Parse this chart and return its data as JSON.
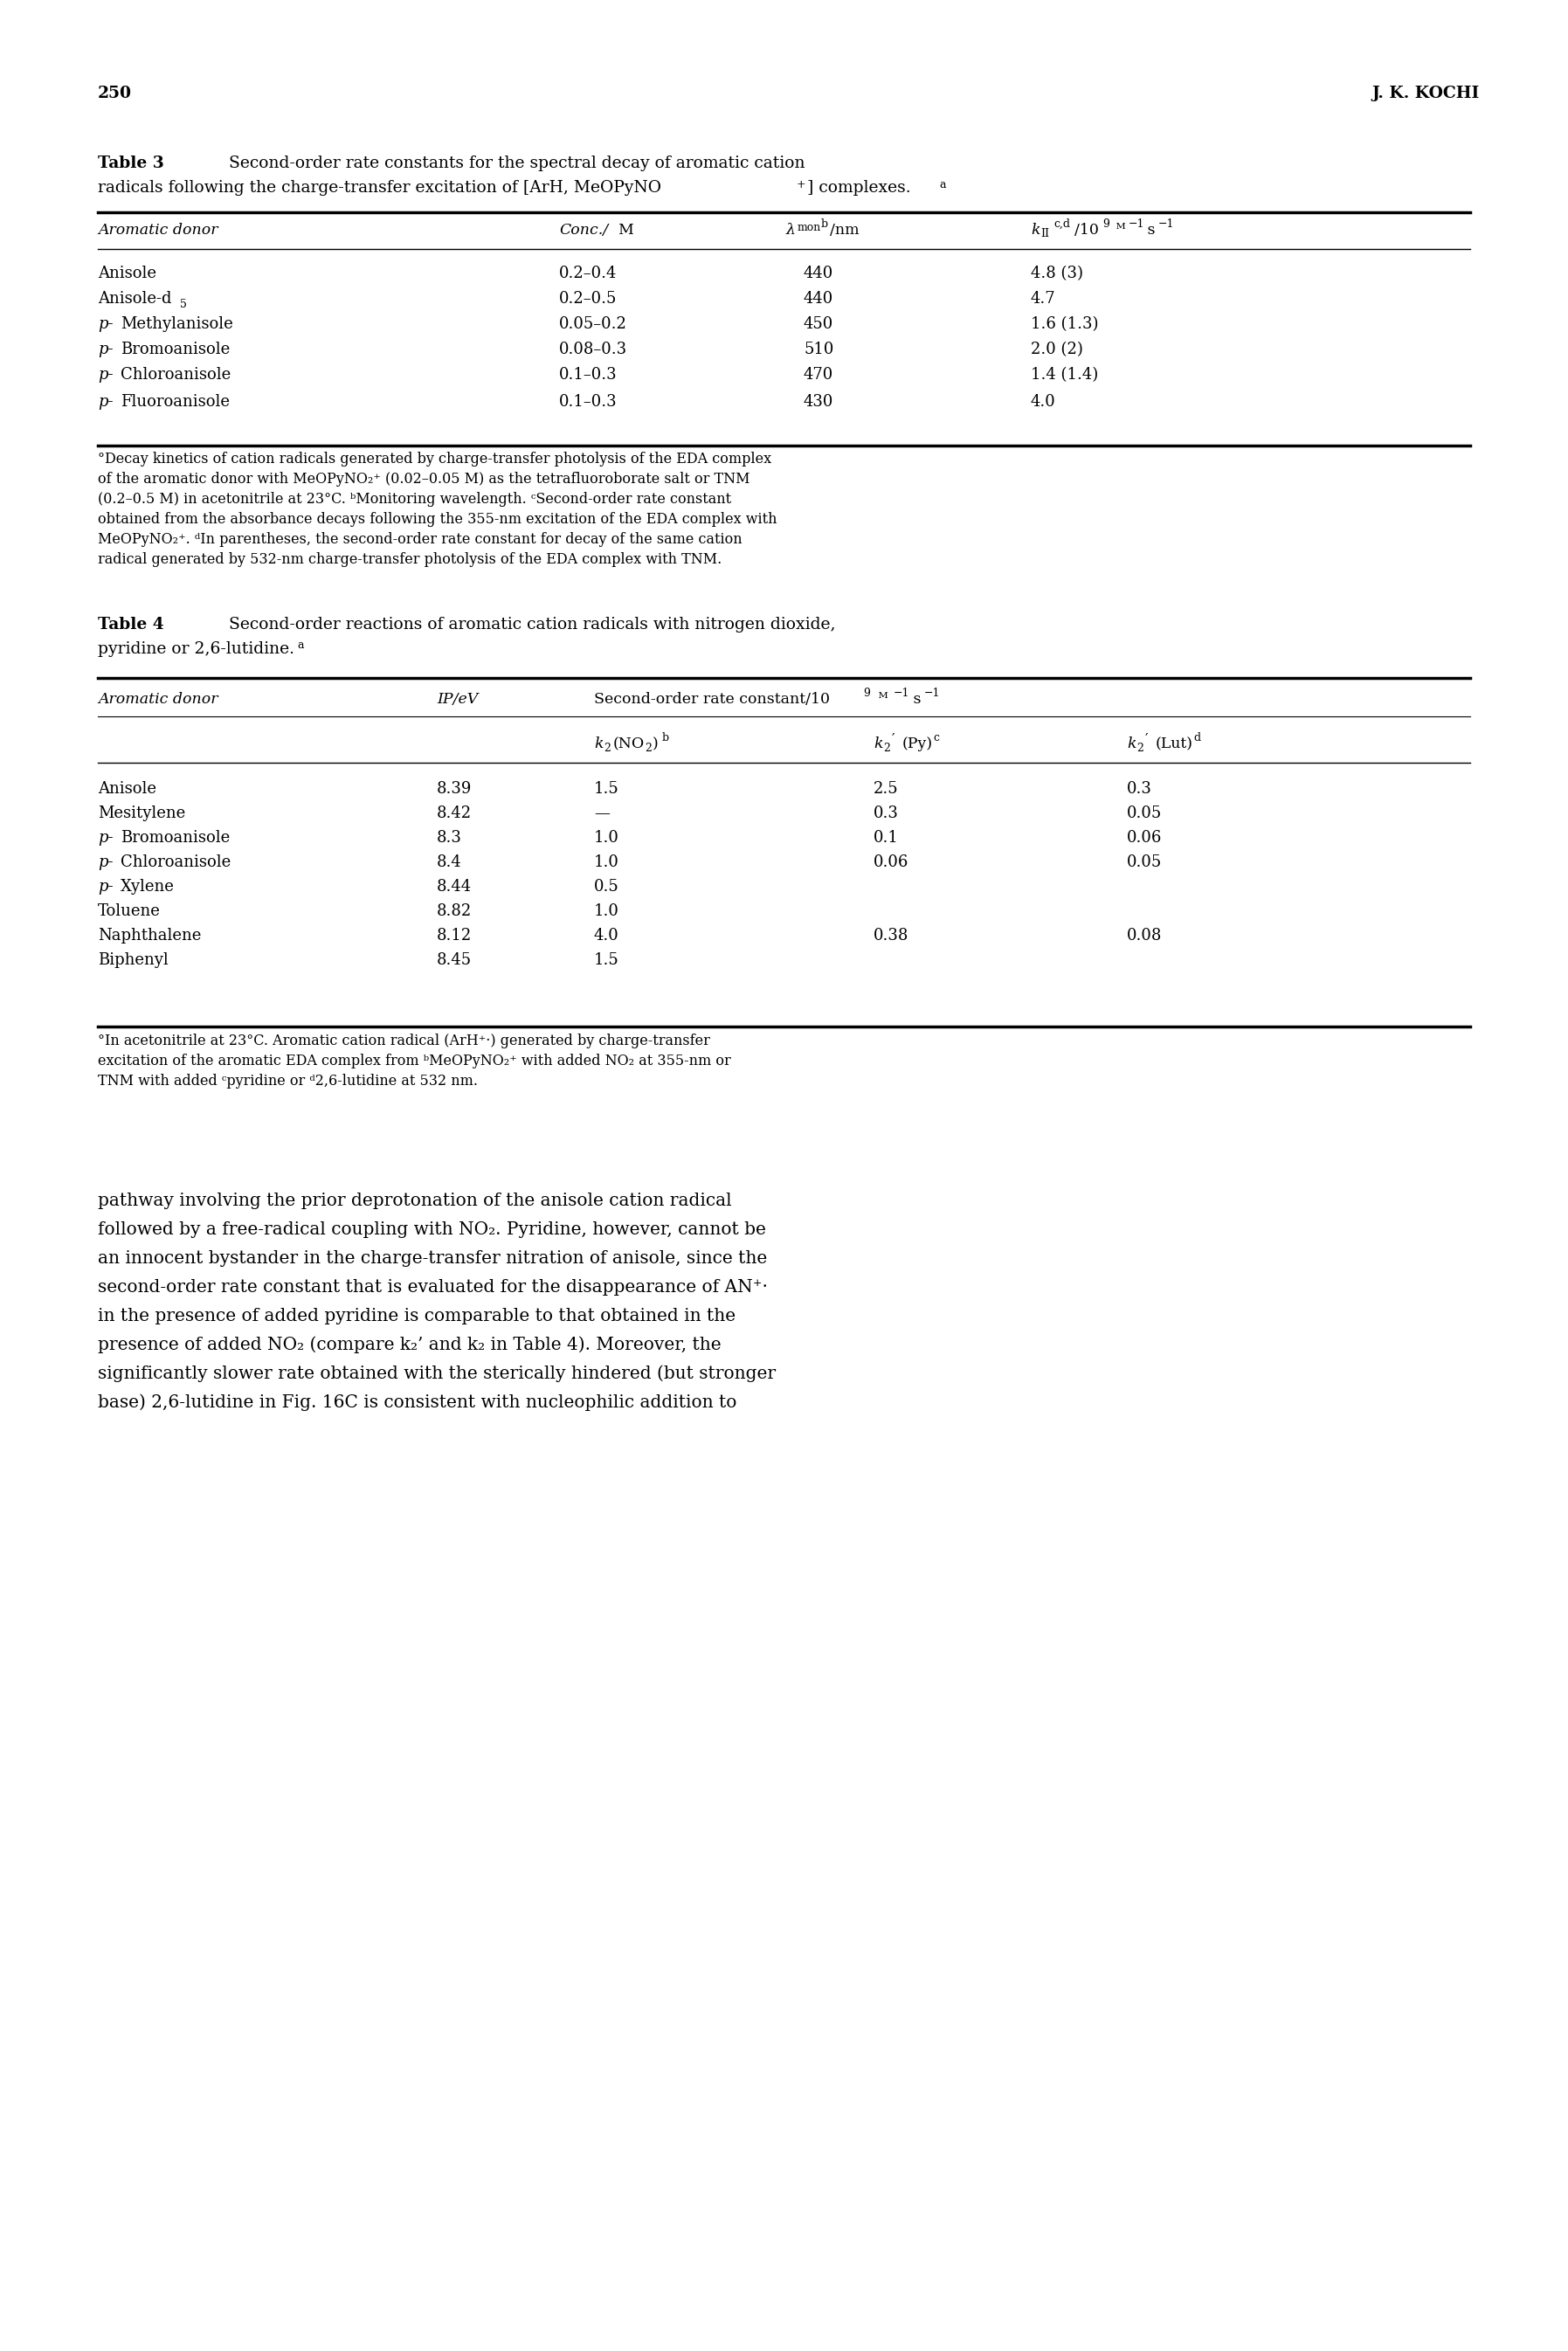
{
  "page_number": "250",
  "page_author": "J. K. KOCHI",
  "table3_rows": [
    [
      "Anisole",
      "0.2–0.4",
      "440",
      "4.8 (3)"
    ],
    [
      "Anisole-d5",
      "0.2–0.5",
      "440",
      "4.7"
    ],
    [
      "p-Methylanisole",
      "0.05–0.2",
      "450",
      "1.6 (1.3)"
    ],
    [
      "p-Bromoanisole",
      "0.08–0.3",
      "510",
      "2.0 (2)"
    ],
    [
      "p-Chloroanisole",
      "0.1–0.3",
      "470",
      "1.4 (1.4)"
    ],
    [
      "p-Fluoroanisole",
      "0.1–0.3",
      "430",
      "4.0"
    ]
  ],
  "table4_rows": [
    [
      "Anisole",
      "8.39",
      "1.5",
      "2.5",
      "0.3"
    ],
    [
      "Mesitylene",
      "8.42",
      "—",
      "0.3",
      "0.05"
    ],
    [
      "p-Bromoanisole",
      "8.3",
      "1.0",
      "0.1",
      "0.06"
    ],
    [
      "p-Chloroanisole",
      "8.4",
      "1.0",
      "0.06",
      "0.05"
    ],
    [
      "p-Xylene",
      "8.44",
      "0.5",
      "",
      ""
    ],
    [
      "Toluene",
      "8.82",
      "1.0",
      "",
      ""
    ],
    [
      "Naphthalene",
      "8.12",
      "4.0",
      "0.38",
      "0.08"
    ],
    [
      "Biphenyl",
      "8.45",
      "1.5",
      "",
      ""
    ]
  ],
  "fn3_lines": [
    "°Decay kinetics of cation radicals generated by charge-transfer photolysis of the EDA complex",
    "of the aromatic donor with MeOPyNO₂⁺ (0.02–0.05 M) as the tetrafluoroborate salt or TNM",
    "(0.2–0.5 M) in acetonitrile at 23°C. ᵇMonitoring wavelength. ᶜSecond-order rate constant",
    "obtained from the absorbance decays following the 355-nm excitation of the EDA complex with",
    "MeOPyNO₂⁺. ᵈIn parentheses, the second-order rate constant for decay of the same cation",
    "radical generated by 532-nm charge-transfer photolysis of the EDA complex with TNM."
  ],
  "fn4_lines": [
    "°In acetonitrile at 23°C. Aromatic cation radical (ArH⁺·) generated by charge-transfer",
    "excitation of the aromatic EDA complex from ᵇMeOPyNO₂⁺ with added NO₂ at 355-nm or",
    "TNM with added ᶜpyridine or ᵈ2,6-lutidine at 532 nm."
  ],
  "body_lines": [
    "pathway involving the prior deprotonation of the anisole cation radical",
    "followed by a free-radical coupling with NO₂. Pyridine, however, cannot be",
    "an innocent bystander in the charge-transfer nitration of anisole, since the",
    "second-order rate constant that is evaluated for the disappearance of AN⁺·",
    "in the presence of added pyridine is comparable to that obtained in the",
    "presence of added NO₂ (compare k₂’ and k₂ in Table 4). Moreover, the",
    "significantly slower rate obtained with the sterically hindered (but stronger",
    "base) 2,6-lutidine in Fig. 16C is consistent with nucleophilic addition to"
  ],
  "bg_color": "#ffffff",
  "text_color": "#000000"
}
